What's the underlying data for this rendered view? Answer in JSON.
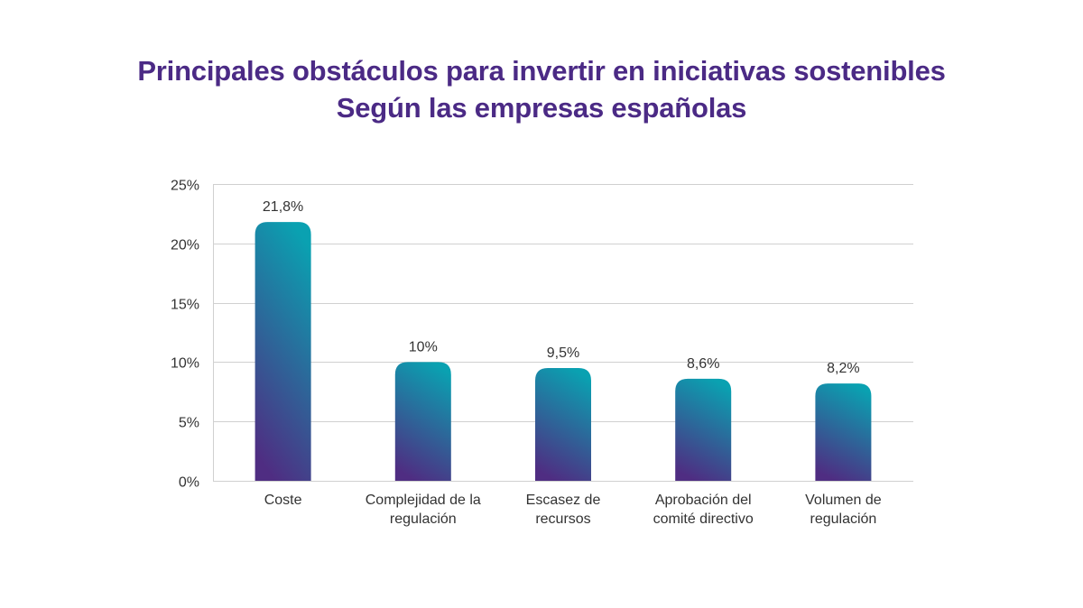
{
  "chart_data": {
    "type": "bar",
    "title": "Principales obstáculos para invertir en iniciativas sostenibles",
    "subtitle": "Según las empresas españolas",
    "categories": [
      [
        "Coste"
      ],
      [
        "Complejidad de la",
        "regulación"
      ],
      [
        "Escasez de",
        "recursos"
      ],
      [
        "Aprobación del",
        "comité directivo"
      ],
      [
        "Volumen de",
        "regulación"
      ]
    ],
    "values": [
      21.8,
      10,
      9.5,
      8.6,
      8.2
    ],
    "data_labels": [
      "21,8%",
      "10%",
      "9,5%",
      "8,6%",
      "8,2%"
    ],
    "xlabel": "",
    "ylabel": "",
    "ylim": [
      0,
      25
    ],
    "yticks": [
      0,
      5,
      10,
      15,
      20,
      25
    ],
    "ytick_labels": [
      "0%",
      "5%",
      "10%",
      "15%",
      "20%",
      "25%"
    ],
    "grid": true,
    "legend": "none",
    "colors": {
      "title": "#4b2a85",
      "bar_gradient_top": "#0aa1b1",
      "bar_gradient_bottom": "#4f2d82",
      "grid": "#d0d0d0",
      "text": "#333333"
    }
  }
}
